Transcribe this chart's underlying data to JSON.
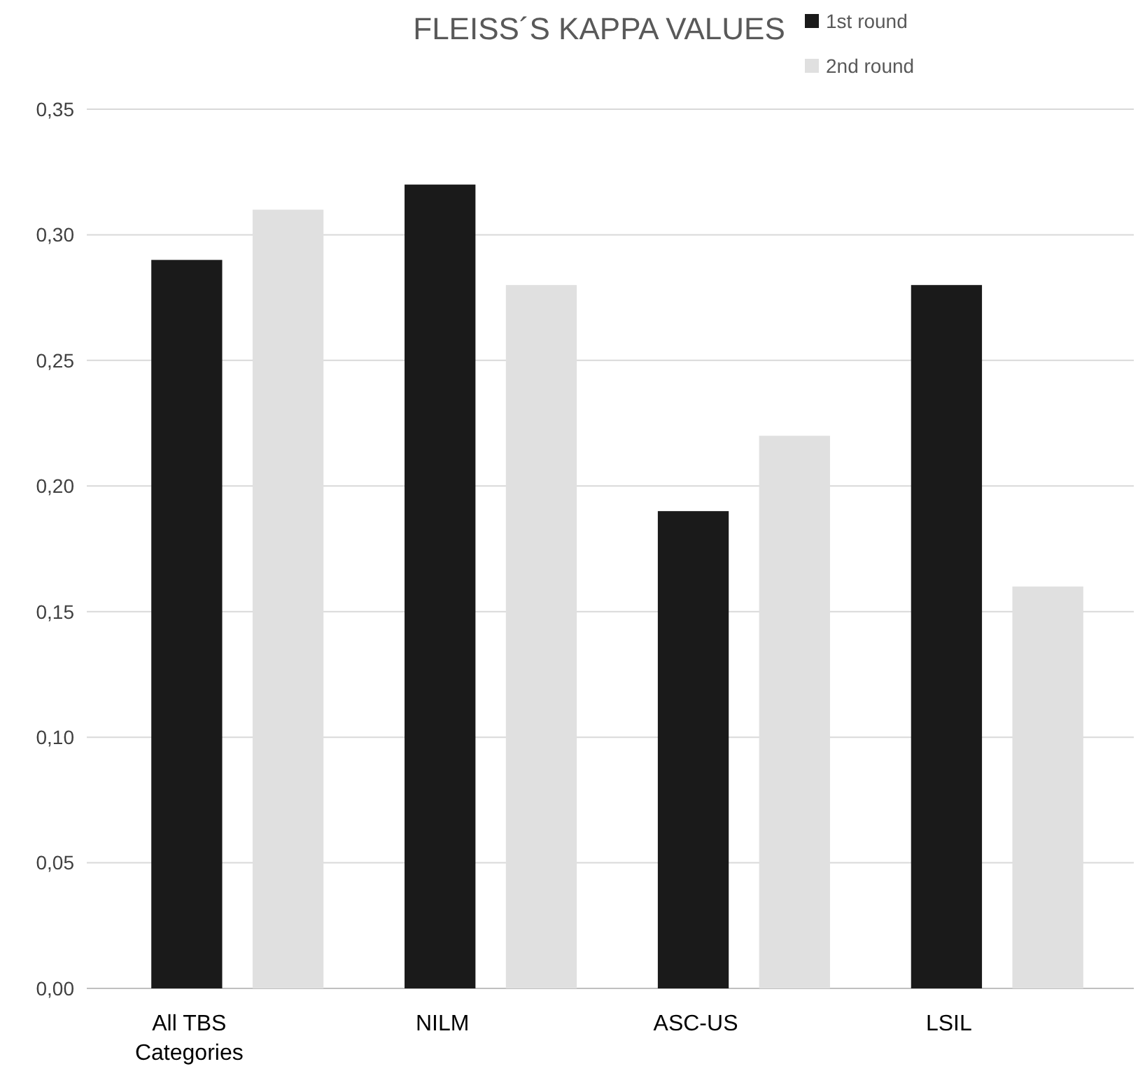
{
  "chart_data": {
    "type": "bar",
    "title": "FLEISS´S KAPPA VALUES",
    "categories": [
      "All TBS Categories",
      "NILM",
      "ASC-US",
      "LSIL"
    ],
    "series": [
      {
        "name": "1st round",
        "color": "#1a1a1a",
        "values": [
          0.29,
          0.32,
          0.19,
          0.28
        ]
      },
      {
        "name": "2nd round",
        "color": "#e0e0e0",
        "values": [
          0.31,
          0.28,
          0.22,
          0.16
        ]
      }
    ],
    "ylim": [
      0,
      0.35
    ],
    "yticks": [
      {
        "value": 0,
        "label": "0,00"
      },
      {
        "value": 0.05,
        "label": "0,05"
      },
      {
        "value": 0.1,
        "label": "0,10"
      },
      {
        "value": 0.15,
        "label": "0,15"
      },
      {
        "value": 0.2,
        "label": "0,20"
      },
      {
        "value": 0.25,
        "label": "0,25"
      },
      {
        "value": 0.3,
        "label": "0,30"
      },
      {
        "value": 0.35,
        "label": "0,35"
      }
    ],
    "grid": "y",
    "legend": "top right"
  }
}
